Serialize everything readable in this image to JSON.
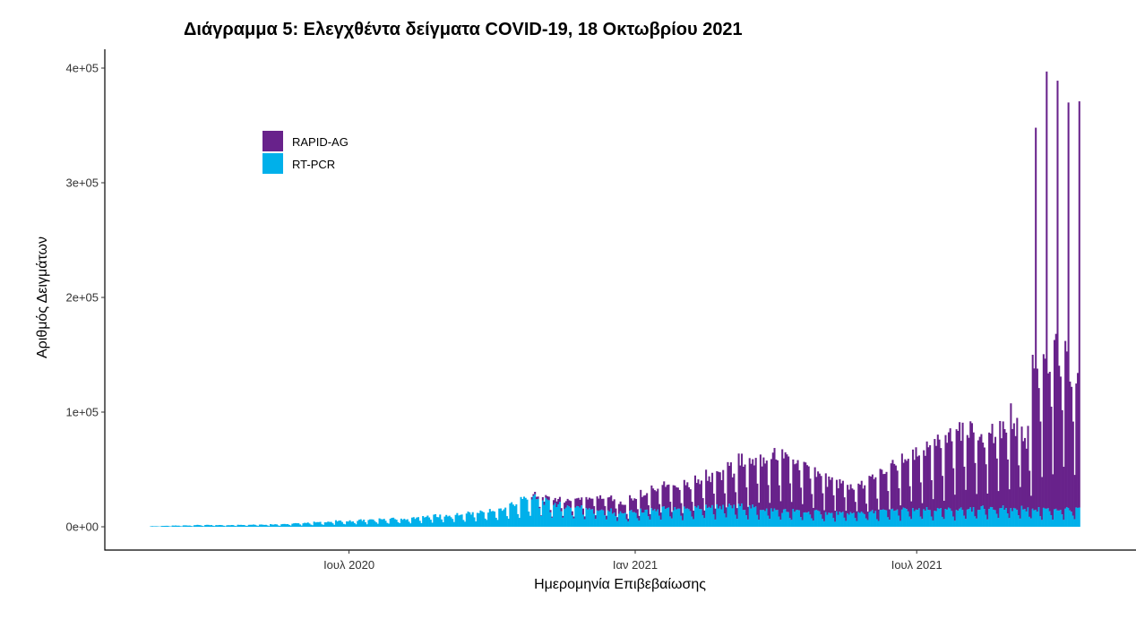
{
  "chart_data": {
    "type": "bar",
    "stacked": true,
    "title": "Διάγραμμα 5: Ελεγχθέντα δείγματα COVID-19, 18 Οκτωβρίου 2021",
    "xlabel": "Ημερομηνία Επιβεβαίωσης",
    "ylabel": "Αριθμός Δειγμάτων",
    "start_date": "2020-02-24",
    "x_unit": "days since start_date",
    "xlim": [
      -29,
      634
    ],
    "ylim": [
      -20300,
      416400
    ],
    "grid": false,
    "legend_position": "top-left inside",
    "x_ticks": [
      {
        "day": 128,
        "label": "Ιουλ 2020"
      },
      {
        "day": 312,
        "label": "Ιαν 2021"
      },
      {
        "day": 493,
        "label": "Ιουλ 2021"
      }
    ],
    "y_ticks": [
      {
        "value": 0,
        "label": "0e+00"
      },
      {
        "value": 100000,
        "label": "1e+05"
      },
      {
        "value": 200000,
        "label": "2e+05"
      },
      {
        "value": 300000,
        "label": "3e+05"
      },
      {
        "value": 400000,
        "label": "4e+05"
      }
    ],
    "weekday_profile_note": "daily value = weekly level × weekday factor (Mon..Sun)",
    "series": [
      {
        "name": "RT-PCR",
        "color": "#00B0EA",
        "weekday_factor": [
          1,
          1,
          1,
          0.95,
          0.95,
          0.6,
          0.4
        ],
        "weekly_level_thousands": [
          0.5,
          0.8,
          1,
          1.2,
          1.5,
          1.5,
          1.5,
          1.5,
          1.8,
          2,
          2,
          2.2,
          2.5,
          3,
          3.5,
          4,
          4.5,
          5,
          5,
          6,
          6,
          6.5,
          7,
          7,
          8,
          9,
          10,
          10,
          11,
          12,
          13,
          14,
          16,
          20,
          25,
          25,
          22,
          20,
          18,
          18,
          17,
          15,
          14,
          12,
          13,
          14,
          15,
          16,
          15,
          16,
          17,
          18,
          18,
          18,
          18,
          17,
          16,
          15,
          14,
          14,
          13,
          13,
          12,
          12,
          12,
          13,
          13,
          14,
          15,
          15,
          15,
          15,
          15,
          15,
          16,
          16,
          17,
          18,
          17,
          16,
          16,
          16,
          16,
          16,
          15,
          15
        ]
      },
      {
        "name": "RAPID-AG",
        "color": "#68228B",
        "weekday_factor": [
          1,
          0.95,
          0.95,
          0.9,
          0.9,
          0.6,
          0.3
        ],
        "weekly_level_thousands": [
          0,
          0,
          0,
          0,
          0,
          0,
          0,
          0,
          0,
          0,
          0,
          0,
          0,
          0,
          0,
          0,
          0,
          0,
          0,
          0,
          0,
          0,
          0,
          0,
          0,
          0,
          0,
          0,
          0,
          0,
          0,
          0,
          0,
          0,
          0,
          2,
          3,
          5,
          6,
          8,
          10,
          12,
          12,
          8,
          12,
          15,
          18,
          20,
          20,
          22,
          25,
          28,
          30,
          35,
          40,
          45,
          45,
          50,
          50,
          45,
          40,
          35,
          30,
          28,
          25,
          25,
          30,
          35,
          40,
          45,
          50,
          55,
          60,
          70,
          75,
          75,
          70,
          70,
          75,
          80,
          70,
          130,
          140,
          140,
          130,
          110
        ],
        "spikes_total": [
          {
            "day": 569,
            "total": 348000
          },
          {
            "day": 576,
            "total": 397000
          },
          {
            "day": 583,
            "total": 389000
          },
          {
            "day": 590,
            "total": 370000
          },
          {
            "day": 597,
            "total": 371000
          }
        ]
      }
    ],
    "legend": [
      "RAPID-AG",
      "RT-PCR"
    ]
  }
}
